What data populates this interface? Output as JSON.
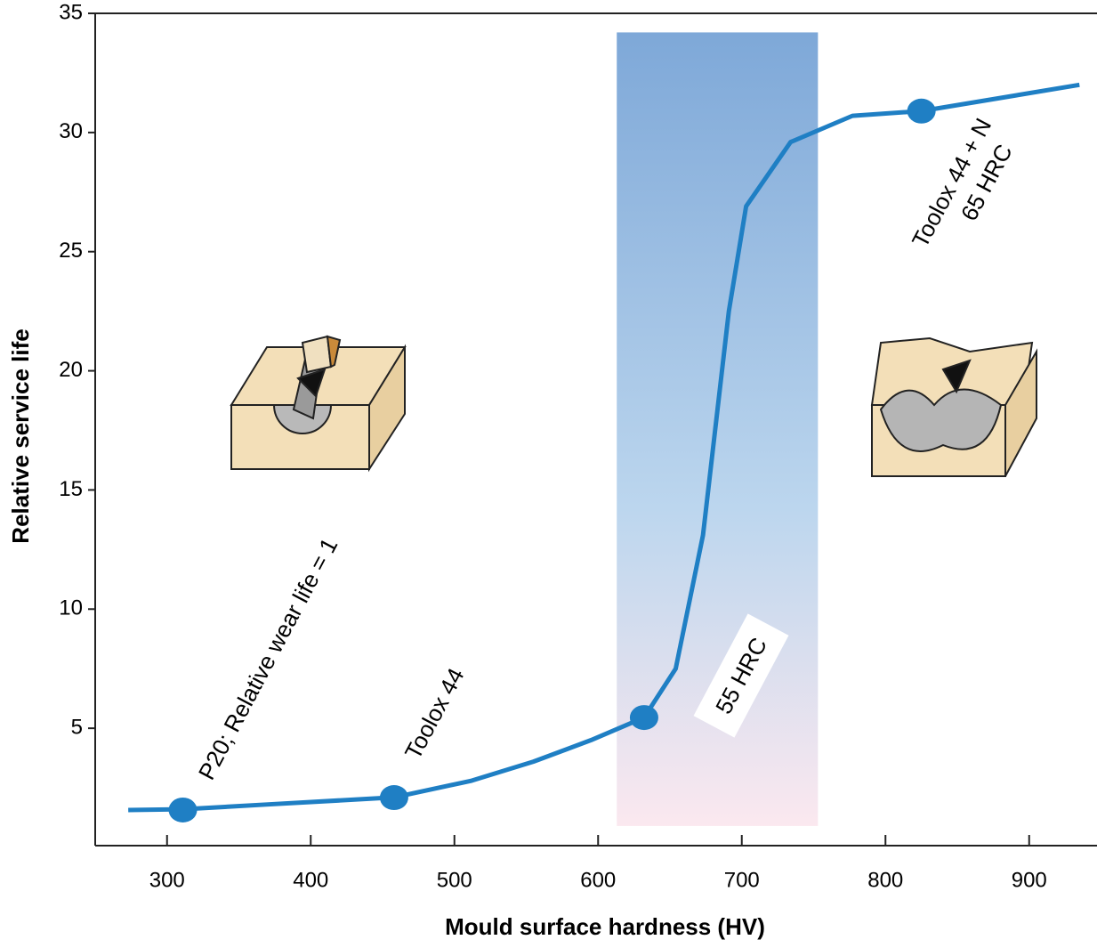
{
  "chart_data": {
    "type": "line",
    "x_label": "Mould surface hardness (HV)",
    "y_label": "Relative service life",
    "xlim": [
      250,
      947
    ],
    "ylim": [
      0,
      35
    ],
    "xticks": [
      300,
      400,
      500,
      600,
      700,
      800,
      900
    ],
    "yticks": [
      5,
      10,
      15,
      20,
      25,
      30,
      35
    ],
    "series": [
      {
        "color": "#1f7fc4",
        "x": [
          273,
          311,
          369,
          458,
          512,
          555,
          595,
          632,
          654,
          673,
          691,
          703,
          734,
          777,
          825,
          935
        ],
        "values": [
          1.57,
          1.6,
          1.8,
          2.1,
          2.8,
          3.6,
          4.5,
          5.45,
          7.5,
          13.1,
          22.5,
          26.9,
          29.6,
          30.7,
          30.9,
          32.0
        ]
      }
    ],
    "markers": {
      "color": "#1f7fc4",
      "x": [
        311,
        458,
        632,
        825
      ],
      "values": [
        1.57,
        2.09,
        5.45,
        30.9
      ]
    },
    "highlight": {
      "x": [
        613,
        753
      ],
      "y": [
        0.9,
        34.2
      ]
    },
    "annotations": [
      "P20; Relative wear life = 1",
      "Toolox 44",
      "55 HRC",
      "Toolox 44 + N",
      "65 HRC"
    ]
  }
}
